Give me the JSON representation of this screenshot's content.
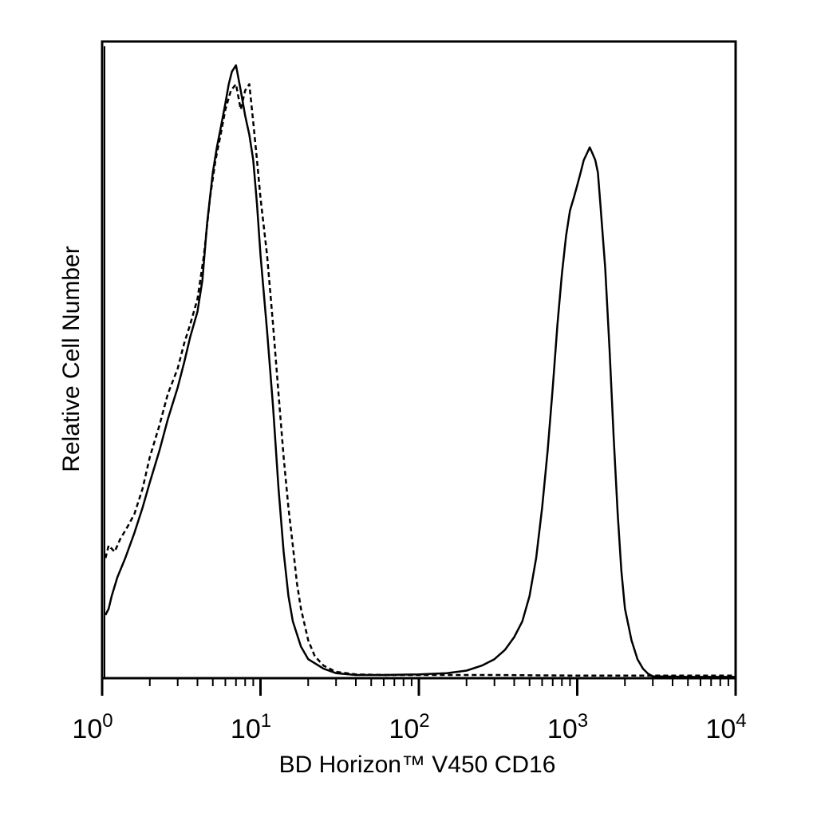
{
  "chart_data": {
    "type": "line",
    "title": "",
    "xlabel": "BD Horizon™ V450 CD16",
    "ylabel": "Relative Cell Number",
    "x_scale": "log",
    "xlim": [
      1,
      10000
    ],
    "ylim": [
      0,
      100
    ],
    "grid": false,
    "legend": "none",
    "x_ticks": [
      {
        "base": "10",
        "exp": "0",
        "value": 1
      },
      {
        "base": "10",
        "exp": "1",
        "value": 10
      },
      {
        "base": "10",
        "exp": "2",
        "value": 100
      },
      {
        "base": "10",
        "exp": "3",
        "value": 1000
      },
      {
        "base": "10",
        "exp": "4",
        "value": 10000
      }
    ],
    "series": [
      {
        "style": "solid",
        "color": "#000000",
        "x": [
          1.05,
          1.1,
          1.15,
          1.25,
          1.4,
          1.6,
          1.8,
          2.0,
          2.3,
          2.6,
          3.0,
          3.3,
          3.6,
          4.0,
          4.3,
          4.6,
          5.0,
          5.3,
          5.6,
          6.0,
          6.3,
          6.6,
          7.0,
          7.5,
          8.0,
          8.5,
          9.0,
          9.5,
          10.0,
          11.0,
          12.0,
          13.0,
          14.0,
          15.0,
          16.0,
          18.0,
          20.0,
          25.0,
          30.0,
          40.0,
          60.0,
          100.0,
          150.0,
          200.0,
          250.0,
          300.0,
          350.0,
          400.0,
          450.0,
          500.0,
          550.0,
          600.0,
          650.0,
          700.0,
          750.0,
          800.0,
          850.0,
          900.0,
          950.0,
          1000.0,
          1050.0,
          1100.0,
          1150.0,
          1200.0,
          1250.0,
          1300.0,
          1350.0,
          1400.0,
          1500.0,
          1600.0,
          1700.0,
          1800.0,
          1900.0,
          2000.0,
          2200.0,
          2400.0,
          2600.0,
          2800.0,
          3000.0,
          5000.0,
          10000.0
        ],
        "y": [
          10,
          11,
          13,
          16,
          19,
          23,
          27,
          31,
          36,
          41,
          46,
          50,
          54,
          58,
          63,
          72,
          80,
          84,
          87,
          91,
          94,
          96,
          97,
          93,
          89,
          86,
          82,
          75,
          67,
          55,
          43,
          30,
          20,
          13,
          9,
          5,
          3,
          1.5,
          0.8,
          0.5,
          0.5,
          0.6,
          0.8,
          1.2,
          2,
          3,
          4.5,
          6.5,
          9,
          13,
          19,
          27,
          36,
          46,
          56,
          64,
          70,
          74,
          76,
          78,
          80,
          82,
          83,
          84,
          83,
          82,
          80,
          75,
          65,
          52,
          38,
          26,
          17,
          11,
          6,
          3,
          1.5,
          0.7,
          0.3,
          0.2,
          0.2
        ]
      },
      {
        "style": "dashed",
        "color": "#000000",
        "x": [
          1.05,
          1.1,
          1.2,
          1.3,
          1.45,
          1.6,
          1.8,
          2.0,
          2.3,
          2.6,
          3.0,
          3.3,
          3.6,
          4.0,
          4.4,
          4.8,
          5.2,
          5.6,
          6.0,
          6.5,
          7.0,
          7.5,
          8.0,
          8.5,
          9.0,
          9.5,
          10.0,
          11.0,
          12.0,
          13.0,
          14.0,
          15.0,
          16.0,
          17.0,
          18.0,
          20.0,
          22.0,
          25.0,
          30.0,
          40.0,
          60.0,
          100.0,
          300.0,
          1000.0,
          3000.0,
          10000.0
        ],
        "y": [
          19,
          21,
          20,
          22,
          24,
          26,
          30,
          35,
          40,
          45,
          49,
          53,
          56,
          60,
          67,
          76,
          82,
          86,
          90,
          93,
          94,
          90,
          93,
          94,
          88,
          82,
          76,
          67,
          56,
          45,
          35,
          27,
          21,
          15,
          11,
          6,
          3.5,
          2,
          1,
          0.6,
          0.5,
          0.5,
          0.5,
          0.4,
          0.4,
          0.4
        ]
      }
    ]
  }
}
